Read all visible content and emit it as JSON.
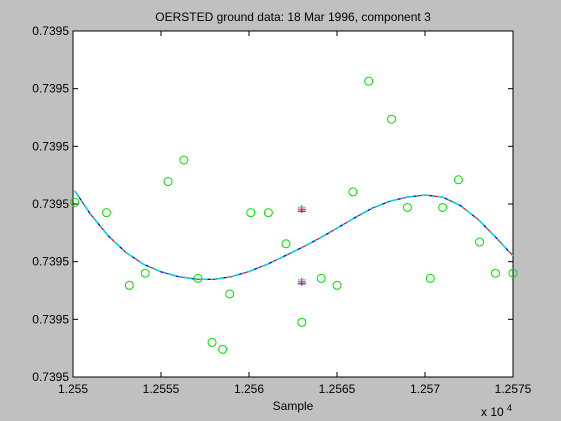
{
  "chart_data": {
    "type": "scatter",
    "title": "OERSTED ground data: 18 Mar 1996, component 3",
    "xlabel": "Sample",
    "ylabel": "",
    "x_multiplier_label": "x 10",
    "x_multiplier_exponent": "4",
    "xlim": [
      12550,
      12575
    ],
    "ylim": [
      0,
      1
    ],
    "x_ticks": [
      12550,
      12555,
      12560,
      12565,
      12570,
      12575
    ],
    "x_tick_labels": [
      "1.255",
      "1.2555",
      "1.256",
      "1.2565",
      "1.257",
      "1.2575"
    ],
    "y_ticks": [
      0,
      0.16667,
      0.33333,
      0.5,
      0.66667,
      0.83333,
      1
    ],
    "y_tick_labels": [
      "0.7395",
      "0.7395",
      "0.7395",
      "0.7395",
      "0.7395",
      "0.7395",
      "0.7395"
    ],
    "grid": false,
    "colors": {
      "background": "#c0c0c0",
      "axes": "#ffffff",
      "points": "#00dd00",
      "fit_red": "#ff0000",
      "fit_blue": "#0000ff",
      "fit_cyan": "#00d8e8"
    },
    "points": {
      "x": [
        12550.1,
        12551.9,
        12553.2,
        12554.1,
        12555.4,
        12556.3,
        12557.1,
        12557.9,
        12558.5,
        12558.9,
        12560.1,
        12561.1,
        12562.1,
        12563.0,
        12564.1,
        12565.0,
        12565.9,
        12566.8,
        12568.1,
        12569.0,
        12570.3,
        12571.0,
        12571.9,
        12573.1,
        12574.0,
        12575.0
      ],
      "y": [
        0.505,
        0.475,
        0.265,
        0.3,
        0.565,
        0.627,
        0.285,
        0.1,
        0.08,
        0.24,
        0.475,
        0.475,
        0.385,
        0.158,
        0.285,
        0.265,
        0.535,
        0.855,
        0.745,
        0.49,
        0.285,
        0.49,
        0.57,
        0.39,
        0.3,
        0.3
      ]
    },
    "fit_curve": {
      "x": [
        12550.1,
        12551,
        12552,
        12553,
        12554,
        12555,
        12556,
        12557,
        12558,
        12559,
        12560,
        12561,
        12562,
        12563,
        12564,
        12565,
        12566,
        12567,
        12568,
        12569,
        12570,
        12571,
        12572,
        12573,
        12574,
        12575
      ],
      "y": [
        0.538,
        0.47,
        0.408,
        0.36,
        0.326,
        0.304,
        0.29,
        0.283,
        0.282,
        0.29,
        0.305,
        0.325,
        0.349,
        0.374,
        0.401,
        0.43,
        0.46,
        0.488,
        0.508,
        0.52,
        0.526,
        0.52,
        0.496,
        0.456,
        0.405,
        0.35
      ]
    },
    "error_markers": [
      {
        "x": 12563.0,
        "y_upper": 0.485,
        "y_lower": 0.275
      }
    ]
  }
}
